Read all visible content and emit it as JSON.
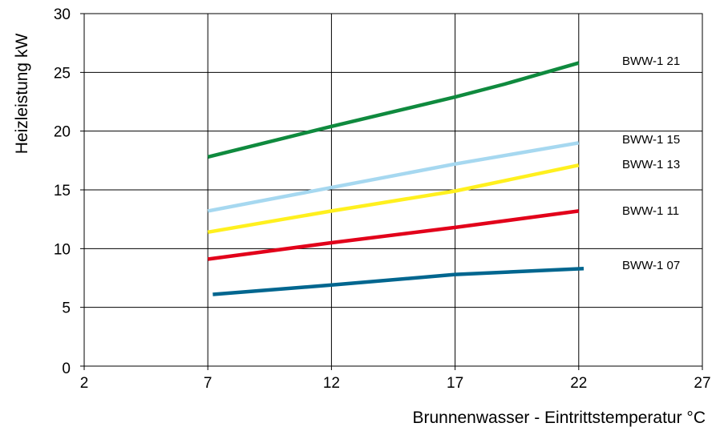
{
  "chart_data": {
    "type": "line",
    "xlabel": "Brunnenwasser - Eintrittstemperatur °C",
    "ylabel": "Heizleistung  kW",
    "xlim": [
      2,
      27
    ],
    "ylim": [
      0,
      30
    ],
    "x_ticks": [
      2,
      7,
      12,
      17,
      22,
      27
    ],
    "y_ticks": [
      0,
      5,
      10,
      15,
      20,
      25,
      30
    ],
    "grid": true,
    "series": [
      {
        "name": "BWW-1 21",
        "color": "#0f8a3e",
        "points": [
          [
            7,
            17.8
          ],
          [
            12,
            20.4
          ],
          [
            17,
            22.9
          ],
          [
            19,
            24.0
          ],
          [
            22,
            25.8
          ]
        ]
      },
      {
        "name": "BWW-1 15",
        "color": "#a6d8f0",
        "points": [
          [
            7,
            13.2
          ],
          [
            12,
            15.2
          ],
          [
            17,
            17.2
          ],
          [
            22,
            19.0
          ]
        ]
      },
      {
        "name": "BWW-1 13",
        "color": "#fff01e",
        "points": [
          [
            7,
            11.4
          ],
          [
            12,
            13.2
          ],
          [
            17,
            14.9
          ],
          [
            22,
            17.1
          ]
        ]
      },
      {
        "name": "BWW-1 11",
        "color": "#e2001a",
        "points": [
          [
            7,
            9.1
          ],
          [
            12,
            10.5
          ],
          [
            17,
            11.8
          ],
          [
            22,
            13.2
          ]
        ]
      },
      {
        "name": "BWW-1 07",
        "color": "#00668f",
        "points": [
          [
            7.2,
            6.1
          ],
          [
            12,
            6.9
          ],
          [
            17,
            7.8
          ],
          [
            22.2,
            8.3
          ]
        ]
      }
    ]
  }
}
